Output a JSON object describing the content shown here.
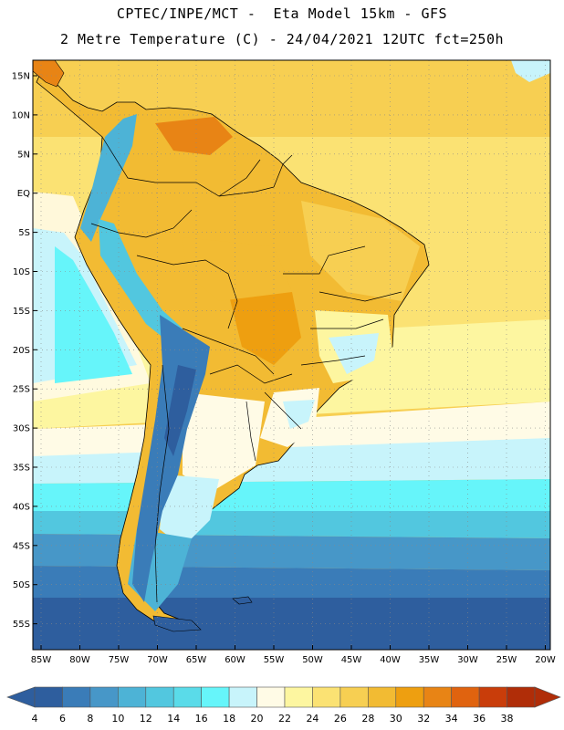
{
  "header": {
    "line1": "CPTEC/INPE/MCT -  Eta Model 15km - GFS",
    "line2": "2 Metre Temperature (C) - 24/04/2021 12UTC fct=250h"
  },
  "map": {
    "lat_labels": [
      "15N",
      "10N",
      "5N",
      "EQ",
      "5S",
      "10S",
      "15S",
      "20S",
      "25S",
      "30S",
      "35S",
      "40S",
      "45S",
      "50S",
      "55S"
    ],
    "lon_labels": [
      "85W",
      "80W",
      "75W",
      "70W",
      "65W",
      "60W",
      "55W",
      "50W",
      "45W",
      "40W",
      "35W",
      "30W",
      "25W",
      "20W"
    ],
    "lat_range": [
      -58,
      16
    ],
    "lon_range": [
      -86,
      -19
    ]
  },
  "colorbar": {
    "levels": [
      "4",
      "6",
      "8",
      "10",
      "12",
      "14",
      "16",
      "18",
      "20",
      "22",
      "24",
      "26",
      "28",
      "30",
      "32",
      "34",
      "36",
      "38"
    ],
    "colors": [
      "#2e5e9e",
      "#3a7cb8",
      "#4797c8",
      "#4db3d6",
      "#52c7df",
      "#5adbe9",
      "#66f5fa",
      "#c8f4fb",
      "#fffbe6",
      "#fdf6a0",
      "#fbe273",
      "#f7cf52",
      "#f2bb33",
      "#ee9f10",
      "#e88415",
      "#e0630f",
      "#c93d0a",
      "#b02d08"
    ]
  }
}
